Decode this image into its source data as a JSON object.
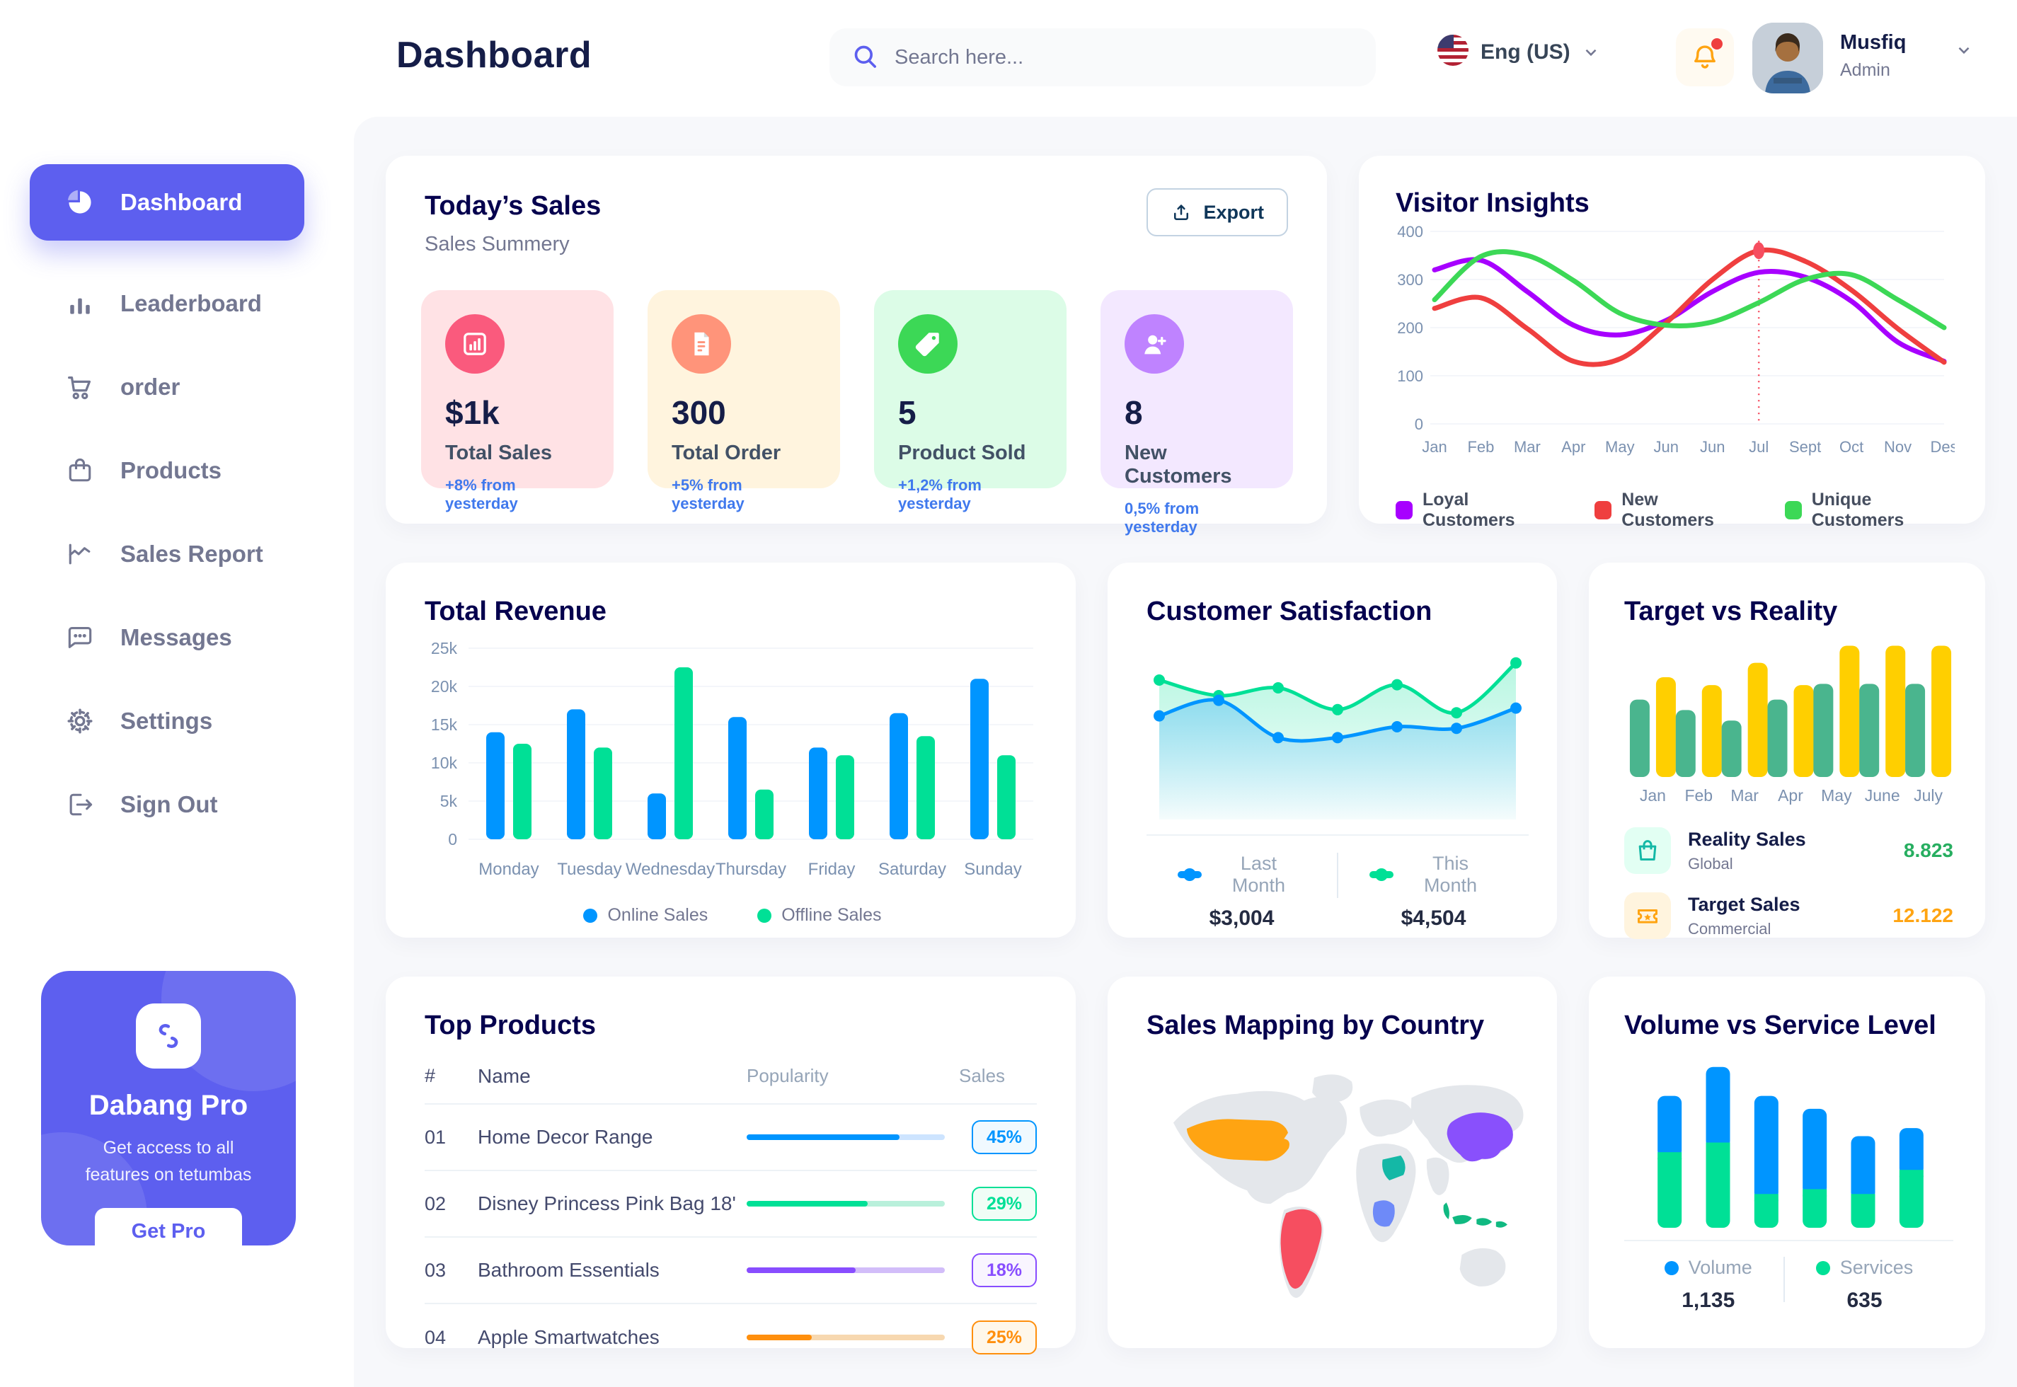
{
  "app": {
    "name": "Dabang"
  },
  "header": {
    "title": "Dashboard",
    "search_placeholder": "Search here...",
    "language": "Eng (US)",
    "user": {
      "name": "Musfiq",
      "role": "Admin"
    }
  },
  "sidebar": {
    "items": [
      {
        "label": "Dashboard",
        "icon": "pie",
        "active": true
      },
      {
        "label": "Leaderboard",
        "icon": "bars",
        "active": false
      },
      {
        "label": "order",
        "icon": "cart",
        "active": false
      },
      {
        "label": "Products",
        "icon": "bag",
        "active": false
      },
      {
        "label": "Sales Report",
        "icon": "trend",
        "active": false
      },
      {
        "label": "Messages",
        "icon": "message",
        "active": false
      },
      {
        "label": "Settings",
        "icon": "gear",
        "active": false
      },
      {
        "label": "Sign Out",
        "icon": "signout",
        "active": false
      }
    ],
    "pro": {
      "title": "Dabang Pro",
      "line1": "Get access to all",
      "line2": "features on tetumbas",
      "button": "Get Pro"
    }
  },
  "today_sales": {
    "title": "Today’s Sales",
    "subtitle": "Sales Summery",
    "export_label": "Export",
    "cards": [
      {
        "value": "$1k",
        "label": "Total Sales",
        "note": "+8% from yesterday",
        "bg": "#FFE2E5",
        "icon_bg": "#FA5A7D",
        "icon": "stat-chart"
      },
      {
        "value": "300",
        "label": "Total Order",
        "note": "+5% from yesterday",
        "bg": "#FFF4DE",
        "icon_bg": "#FF947A",
        "icon": "stat-receipt"
      },
      {
        "value": "5",
        "label": "Product Sold",
        "note": "+1,2% from yesterday",
        "bg": "#DCFCE7",
        "icon_bg": "#3CD856",
        "icon": "stat-tag"
      },
      {
        "value": "8",
        "label": "New Customers",
        "note": "0,5% from yesterday",
        "bg": "#F3E8FF",
        "icon_bg": "#BF83FF",
        "icon": "stat-user"
      }
    ]
  },
  "top_products": {
    "title": "Top Products",
    "columns": [
      "#",
      "Name",
      "Popularity",
      "Sales"
    ],
    "rows": [
      {
        "num": "01",
        "name": "Home Decor Range",
        "fill": 0.77,
        "color": "#0095FF",
        "track": "#CDE4FF",
        "badge": "45%",
        "badge_bg": "#F0F9FF"
      },
      {
        "num": "02",
        "name": "Disney Princess Pink Bag 18'",
        "fill": 0.61,
        "color": "#00E096",
        "track": "#B9F0DB",
        "badge": "29%",
        "badge_bg": "#F0FDF6"
      },
      {
        "num": "03",
        "name": "Bathroom Essentials",
        "fill": 0.55,
        "color": "#884DFF",
        "track": "#D2BDF9",
        "badge": "18%",
        "badge_bg": "#F9F5FF"
      },
      {
        "num": "04",
        "name": "Apple Smartwatches",
        "fill": 0.33,
        "color": "#FF8F0D",
        "track": "#F7D8B0",
        "badge": "25%",
        "badge_bg": "#FFF7EA"
      }
    ]
  },
  "sales_map": {
    "title": "Sales Mapping by Country",
    "countries": [
      {
        "name": "United States",
        "color": "#FFA412"
      },
      {
        "name": "Brazil",
        "color": "#F64E60"
      },
      {
        "name": "Saudi Arabia",
        "color": "#14B8A6"
      },
      {
        "name": "DR Congo",
        "color": "#6E8AF8"
      },
      {
        "name": "China",
        "color": "#8950FC"
      },
      {
        "name": "Indonesia",
        "color": "#10B981"
      }
    ]
  },
  "chart_data": [
    {
      "id": "visitor_insights",
      "type": "line",
      "title": "Visitor Insights",
      "x": [
        "Jan",
        "Feb",
        "Mar",
        "Apr",
        "May",
        "Jun",
        "Jun",
        "Jul",
        "Sept",
        "Oct",
        "Nov",
        "Des"
      ],
      "ylim": [
        0,
        400
      ],
      "yticks": [
        0,
        100,
        200,
        300,
        400
      ],
      "grid": true,
      "legend_position": "bottom",
      "series": [
        {
          "name": "Loyal Customers",
          "color": "#A700FF",
          "values": [
            320,
            340,
            275,
            205,
            185,
            215,
            275,
            315,
            305,
            255,
            170,
            130
          ]
        },
        {
          "name": "New Customers",
          "color": "#EF3F3F",
          "values": [
            240,
            262,
            198,
            130,
            135,
            210,
            300,
            360,
            338,
            278,
            198,
            128
          ]
        },
        {
          "name": "Unique Customers",
          "color": "#3CD856",
          "values": [
            258,
            348,
            350,
            298,
            230,
            205,
            212,
            252,
            300,
            310,
            258,
            200
          ]
        }
      ],
      "annotation": {
        "series": "New Customers",
        "x_index": 7,
        "value": 360
      }
    },
    {
      "id": "total_revenue",
      "type": "bar",
      "title": "Total Revenue",
      "categories": [
        "Monday",
        "Tuesday",
        "Wednesday",
        "Thursday",
        "Friday",
        "Saturday",
        "Sunday"
      ],
      "ylabel": "",
      "ylim": [
        0,
        25
      ],
      "ytick_labels": [
        "0",
        "5k",
        "10k",
        "15k",
        "20k",
        "25k"
      ],
      "grid": true,
      "legend_position": "bottom",
      "series": [
        {
          "name": "Online Sales",
          "color": "#0095FF",
          "values": [
            14,
            17,
            6,
            16,
            12,
            16.5,
            21
          ]
        },
        {
          "name": "Offline Sales",
          "color": "#00E096",
          "values": [
            12.5,
            12,
            22.5,
            6.5,
            11,
            13.5,
            11
          ]
        }
      ]
    },
    {
      "id": "customer_satisfaction",
      "type": "area",
      "title": "Customer Satisfaction",
      "x": [
        1,
        2,
        3,
        4,
        5,
        6,
        7
      ],
      "ylim": [
        0,
        110
      ],
      "legend_position": "bottom",
      "series": [
        {
          "name": "Last Month",
          "color": "#0095FF",
          "total": "$3,004",
          "values": [
            62,
            72,
            48,
            48,
            55,
            54,
            67
          ]
        },
        {
          "name": "This Month",
          "color": "#00E096",
          "total": "$4,504",
          "values": [
            85,
            75,
            80,
            66,
            82,
            64,
            96
          ]
        }
      ]
    },
    {
      "id": "target_vs_reality",
      "type": "bar",
      "title": "Target vs Reality",
      "categories": [
        "Jan",
        "Feb",
        "Mar",
        "Apr",
        "May",
        "June",
        "July"
      ],
      "ylim": [
        0,
        110
      ],
      "legend_position": "bottom",
      "series": [
        {
          "name": "Reality Sales",
          "subtitle": "Global",
          "color": "#4AB58E",
          "value_label": "8.823",
          "value_color": "#27AE60",
          "icon": "bag-mint",
          "icon_color": "#14B8A6",
          "icon_bg": "#E2FFF3",
          "values": [
            59,
            51,
            43,
            59,
            71,
            71,
            71
          ]
        },
        {
          "name": "Target Sales",
          "subtitle": "Commercial",
          "color": "#FFCF00",
          "value_label": "12.122",
          "value_color": "#FFA412",
          "icon": "ticket",
          "icon_color": "#FFA412",
          "icon_bg": "#FFF4DE",
          "values": [
            76,
            70,
            87,
            70,
            100,
            100,
            100
          ]
        }
      ]
    },
    {
      "id": "volume_service",
      "type": "stacked-bar",
      "title": "Volume vs Service Level",
      "categories": [
        "1",
        "2",
        "3",
        "4",
        "5",
        "6"
      ],
      "ylim": [
        0,
        110
      ],
      "legend_position": "bottom",
      "series": [
        {
          "name": "Volume",
          "color": "#0095FF",
          "total": "1,135",
          "values": [
            35,
            47,
            61,
            50,
            36,
            26
          ]
        },
        {
          "name": "Services",
          "color": "#00E096",
          "total": "635",
          "values": [
            47,
            53,
            21,
            24,
            21,
            36
          ]
        }
      ]
    }
  ]
}
